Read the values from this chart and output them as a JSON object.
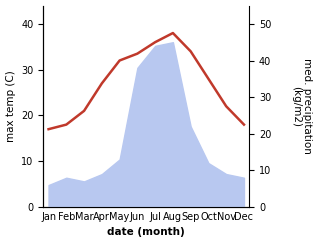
{
  "months": [
    "Jan",
    "Feb",
    "Mar",
    "Apr",
    "May",
    "Jun",
    "Jul",
    "Aug",
    "Sep",
    "Oct",
    "Nov",
    "Dec"
  ],
  "temperature": [
    17.0,
    18.0,
    21.0,
    27.0,
    32.0,
    33.5,
    36.0,
    38.0,
    34.0,
    28.0,
    22.0,
    18.0
  ],
  "precipitation": [
    6,
    8,
    7,
    9,
    13,
    38,
    44,
    45,
    22,
    12,
    9,
    8
  ],
  "temp_color": "#c0392b",
  "precip_color": "#b8c8f0",
  "ylim_temp": [
    0,
    44
  ],
  "ylim_precip": [
    0,
    55
  ],
  "yticks_temp": [
    0,
    10,
    20,
    30,
    40
  ],
  "yticks_precip": [
    0,
    10,
    20,
    30,
    40,
    50
  ],
  "xlabel": "date (month)",
  "ylabel_left": "max temp (C)",
  "ylabel_right": "med. precipitation\n(kg/m2)",
  "bg_color": "#ffffff",
  "label_fontsize": 7.5,
  "tick_fontsize": 7,
  "line_width": 1.8
}
